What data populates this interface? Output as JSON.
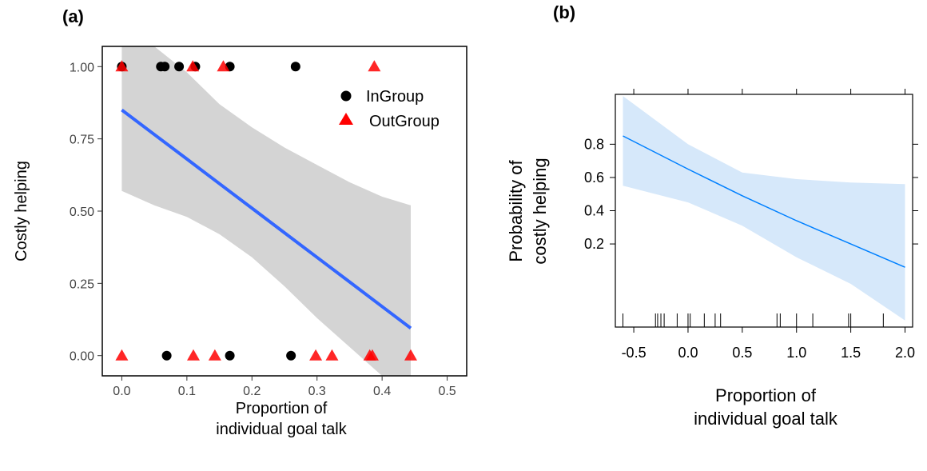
{
  "chart_data": [
    {
      "panel_label": "(a)",
      "type": "scatter",
      "xlabel": [
        "Proportion of",
        "individual goal talk"
      ],
      "ylabel": "Costly helping",
      "xlim": [
        -0.03,
        0.53
      ],
      "ylim": [
        -0.07,
        1.07
      ],
      "x_ticks": [
        "0.0",
        "0.1",
        "0.2",
        "0.3",
        "0.4",
        "0.5"
      ],
      "y_ticks": [
        "0.00",
        "0.25",
        "0.50",
        "0.75",
        "1.00"
      ],
      "legend": {
        "position": "top-right",
        "entries": [
          "InGroup",
          "OutGroup"
        ]
      },
      "series": [
        {
          "name": "InGroup",
          "marker": "circle",
          "color": "#000000",
          "points": [
            [
              0.0,
              1
            ],
            [
              0.06,
              1
            ],
            [
              0.066,
              1
            ],
            [
              0.088,
              1
            ],
            [
              0.113,
              1
            ],
            [
              0.166,
              1
            ],
            [
              0.267,
              1
            ],
            [
              0.069,
              0
            ],
            [
              0.166,
              0
            ],
            [
              0.26,
              0
            ]
          ]
        },
        {
          "name": "OutGroup",
          "marker": "triangle",
          "color": "#ff0000",
          "points": [
            [
              0.0,
              1
            ],
            [
              0.109,
              1
            ],
            [
              0.156,
              1
            ],
            [
              0.388,
              1
            ],
            [
              0.0,
              0
            ],
            [
              0.11,
              0
            ],
            [
              0.143,
              0
            ],
            [
              0.298,
              0
            ],
            [
              0.323,
              0
            ],
            [
              0.381,
              0
            ],
            [
              0.385,
              0
            ],
            [
              0.444,
              0
            ]
          ]
        }
      ],
      "fit": {
        "color": "#3366ff",
        "band_color": "#d4d4d4",
        "x": [
          0.0,
          0.05,
          0.1,
          0.15,
          0.2,
          0.25,
          0.3,
          0.35,
          0.4,
          0.444
        ],
        "y": [
          0.85,
          0.765,
          0.68,
          0.595,
          0.51,
          0.425,
          0.34,
          0.255,
          0.17,
          0.095
        ],
        "ci_upper": [
          1.07,
          1.07,
          0.98,
          0.87,
          0.79,
          0.72,
          0.66,
          0.6,
          0.55,
          0.52
        ],
        "ci_lower": [
          0.57,
          0.52,
          0.48,
          0.42,
          0.34,
          0.24,
          0.13,
          0.03,
          -0.07,
          -0.07
        ]
      }
    },
    {
      "panel_label": "(b)",
      "type": "line",
      "xlabel": [
        "Proportion of",
        "individual goal talk"
      ],
      "ylabel": [
        "Probability of",
        "costly helping"
      ],
      "xlim": [
        -0.67,
        2.07
      ],
      "ylim": [
        -0.3,
        1.1
      ],
      "x_ticks": [
        -0.5,
        0.0,
        0.5,
        1.0,
        1.5,
        2.0
      ],
      "x_tick_labels": [
        "-0.5",
        "0.0",
        "0.5",
        "1.0",
        "1.5",
        "2.0"
      ],
      "y_ticks": [
        0.2,
        0.4,
        0.6,
        0.8
      ],
      "y_tick_labels": [
        "0.2",
        "0.4",
        "0.6",
        "0.8"
      ],
      "line_color": "#0080ff",
      "band_color": "#d6e8fa",
      "fit": {
        "x": [
          -0.6,
          0.0,
          0.5,
          1.0,
          1.5,
          2.0
        ],
        "y": [
          0.85,
          0.65,
          0.49,
          0.34,
          0.2,
          0.06
        ],
        "ci_upper": [
          1.09,
          0.8,
          0.63,
          0.59,
          0.57,
          0.56
        ],
        "ci_lower": [
          0.55,
          0.45,
          0.31,
          0.12,
          -0.04,
          -0.26
        ]
      },
      "rug": [
        -0.6,
        -0.3,
        -0.28,
        -0.25,
        -0.22,
        -0.1,
        0.0,
        0.02,
        0.15,
        0.25,
        0.3,
        0.82,
        0.85,
        1.0,
        1.15,
        1.48,
        1.5,
        1.8
      ]
    }
  ]
}
